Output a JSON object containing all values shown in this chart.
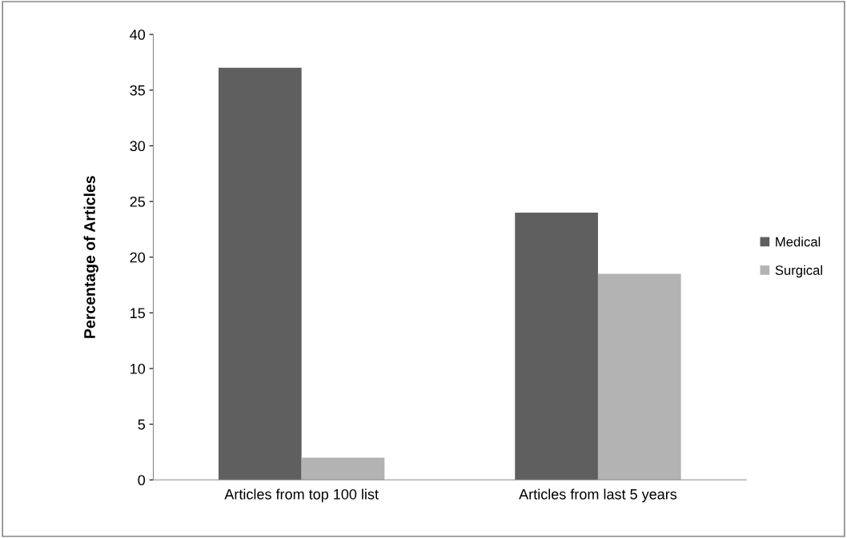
{
  "chart_data": {
    "type": "bar",
    "ylabel": "Percentage of Articles",
    "categories": [
      "Articles from top 100 list",
      "Articles from last 5 years"
    ],
    "series": [
      {
        "name": "Medical",
        "color": "#5f5f5f",
        "values": [
          37,
          24
        ]
      },
      {
        "name": "Surgical",
        "color": "#b3b3b3",
        "values": [
          2,
          18.5
        ]
      }
    ],
    "ylim": [
      0,
      40
    ],
    "yticks": [
      0,
      5,
      10,
      15,
      20,
      25,
      30,
      35,
      40
    ],
    "grid": false,
    "legend": "right"
  }
}
